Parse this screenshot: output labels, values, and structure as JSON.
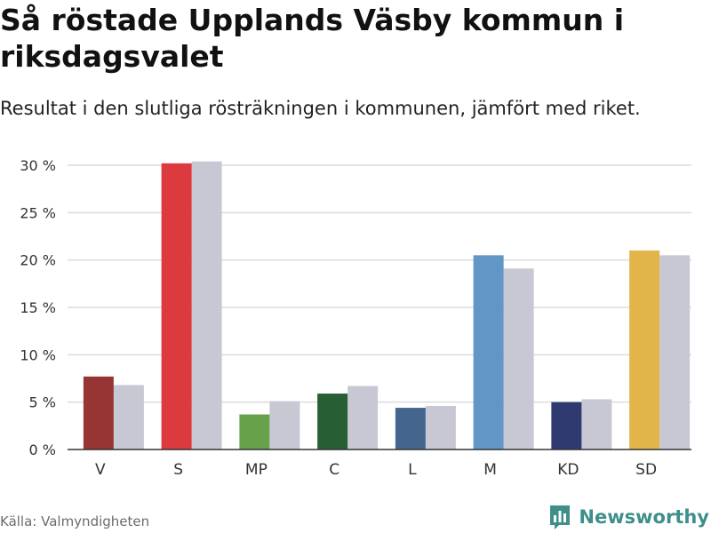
{
  "title": "Så röstade Upplands Väsby kommun i riksdagsvalet",
  "subtitle": "Resultat i den slutliga rösträkningen i kommunen, jämfört med riket.",
  "source": "Källa: Valmyndigheten",
  "brand": {
    "name": "Newsworthy",
    "color": "#3e8f8b",
    "icon": "bar-chart-logo-icon"
  },
  "chart_data": {
    "type": "bar",
    "categories": [
      "V",
      "S",
      "MP",
      "C",
      "L",
      "M",
      "KD",
      "SD"
    ],
    "series": [
      {
        "name": "Upplands Väsby",
        "values": [
          7.7,
          30.2,
          3.7,
          5.9,
          4.4,
          20.5,
          5.0,
          21.0
        ],
        "colors": [
          "#963534",
          "#dd3a3f",
          "#67a24a",
          "#275e34",
          "#44668e",
          "#6296c6",
          "#2e3a70",
          "#e1b54a"
        ]
      },
      {
        "name": "Riket",
        "values": [
          6.8,
          30.4,
          5.1,
          6.7,
          4.6,
          19.1,
          5.3,
          20.5
        ],
        "color": "#c8c8d4"
      }
    ],
    "yticks": [
      0,
      5,
      10,
      15,
      20,
      25,
      30
    ],
    "ytick_labels": [
      "0 %",
      "5 %",
      "10 %",
      "15 %",
      "20 %",
      "25 %",
      "30 %"
    ],
    "ylim": [
      0,
      30
    ],
    "xlabel": "",
    "ylabel": "",
    "grid": true,
    "legend": "none"
  }
}
